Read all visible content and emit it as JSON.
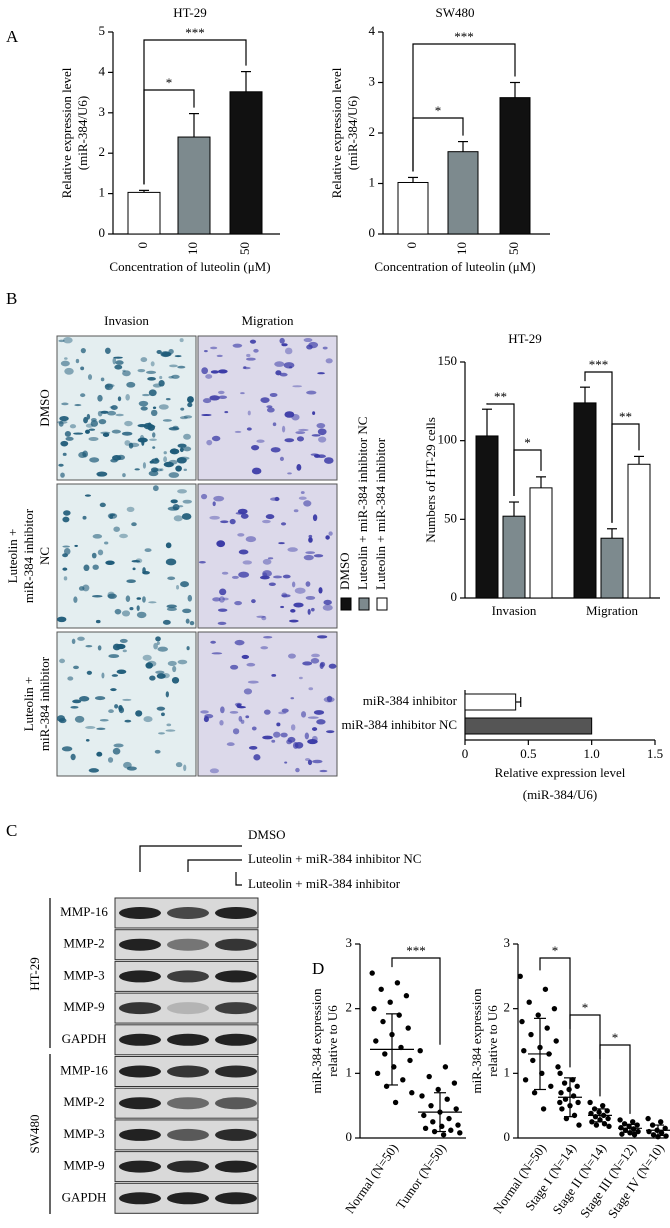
{
  "panel_labels": [
    "A",
    "B",
    "C",
    "D"
  ],
  "micrographs": {
    "columns": [
      "Invasion",
      "Migration"
    ],
    "rows": [
      [
        "DMSO"
      ],
      [
        "Luteolin +",
        "miR-384 inhibitor",
        "NC"
      ],
      [
        "Luteolin +",
        "miR-384 inhibitor"
      ]
    ]
  },
  "western_blot": {
    "treatments": [
      "DMSO",
      "Luteolin + miR-384 inhibitor NC",
      "Luteolin + miR-384 inhibitor"
    ],
    "groups": [
      "HT-29",
      "SW480"
    ],
    "proteins": [
      [
        "MMP-16",
        "MMP-2",
        "MMP-3",
        "MMP-9",
        "GAPDH"
      ],
      [
        "MMP-16",
        "MMP-2",
        "MMP-3",
        "MMP-9",
        "GAPDH"
      ]
    ]
  },
  "chart_data": [
    {
      "type": "bar",
      "title": "HT-29",
      "categories": [
        "0",
        "10",
        "50"
      ],
      "values": [
        1.03,
        2.4,
        3.52
      ],
      "errors": [
        0.05,
        0.58,
        0.5
      ],
      "colors": [
        "#ffffff",
        "#7d8a8e",
        "#111111"
      ],
      "ylim": [
        0,
        5
      ],
      "yticks": [
        0,
        1,
        2,
        3,
        4,
        5
      ],
      "y_label": [
        "Relative expression level",
        "(miR-384/U6)"
      ],
      "x_label": "Concentration of luteolin (μM)",
      "annotations": [
        "*",
        "***"
      ]
    },
    {
      "type": "bar",
      "title": "SW480",
      "categories": [
        "0",
        "10",
        "50"
      ],
      "values": [
        1.02,
        1.63,
        2.7
      ],
      "errors": [
        0.1,
        0.2,
        0.3
      ],
      "colors": [
        "#ffffff",
        "#7d8a8e",
        "#111111"
      ],
      "ylim": [
        0,
        4
      ],
      "yticks": [
        0,
        1,
        2,
        3,
        4
      ],
      "y_label": [
        "Relative expression level",
        "(miR-384/U6)"
      ],
      "x_label": "Concentration of luteolin (μM)",
      "annotations": [
        "*",
        "***"
      ]
    },
    {
      "type": "grouped_bar",
      "title": "HT-29",
      "categories": [
        "Invasion",
        "Migration"
      ],
      "series": [
        {
          "name": "DMSO",
          "color": "#111111",
          "values": [
            103,
            124
          ],
          "errors": [
            17,
            10
          ]
        },
        {
          "name": "Luteolin + miR-384 inhibitor NC",
          "color": "#7d8a8e",
          "values": [
            52,
            38
          ],
          "errors": [
            9,
            6
          ]
        },
        {
          "name": "Luteolin + miR-384 inhibitor",
          "color": "#ffffff",
          "values": [
            70,
            85
          ],
          "errors": [
            7,
            5
          ]
        }
      ],
      "ylim": [
        0,
        150
      ],
      "yticks": [
        0,
        50,
        100,
        150
      ],
      "y_label": [
        "Numbers of HT-29 cells"
      ],
      "annotations": [
        "**",
        "*",
        "***",
        "**"
      ]
    },
    {
      "type": "hbar",
      "categories": [
        "miR-384 inhibitor",
        "miR-384 inhibitor NC"
      ],
      "values": [
        0.4,
        1.0
      ],
      "errors": [
        0.04,
        0
      ],
      "colors": [
        "#ffffff",
        "#555555"
      ],
      "xlim": [
        0,
        1.5
      ],
      "xticks": [
        0,
        0.5,
        {
          "value": 1,
          "label": "1.0"
        },
        1.5
      ],
      "x_label": [
        "Relative expression level",
        "(miR-384/U6)"
      ]
    },
    {
      "type": "dot_plot",
      "categories": [
        "Normal (N=50)",
        "Tumor (N=50)"
      ],
      "values": [
        [
          2.55,
          2.4,
          2.3,
          2.2,
          2.1,
          2.0,
          1.9,
          1.8,
          1.7,
          1.6,
          1.5,
          1.4,
          1.3,
          1.2,
          1.1,
          1.0,
          0.9,
          0.8,
          0.7,
          0.55
        ],
        [
          1.35,
          1.1,
          0.95,
          0.85,
          0.75,
          0.65,
          0.6,
          0.5,
          0.45,
          0.4,
          0.35,
          0.3,
          0.25,
          0.2,
          0.18,
          0.15,
          0.12,
          0.1,
          0.08,
          0.05
        ]
      ],
      "means": [
        1.37,
        0.4
      ],
      "sds": [
        0.55,
        0.3
      ],
      "ylim": [
        0,
        3
      ],
      "yticks": [
        0,
        1,
        2,
        3
      ],
      "y_label": [
        "miR-384 expression",
        "relative to U6"
      ],
      "annotations": [
        "***"
      ]
    },
    {
      "type": "dot_plot",
      "categories": [
        "Normal (N=50)",
        "Stage I (N=14)",
        "Stage II (N=14)",
        "Stage III (N=12)",
        "Stage IV (N=10)"
      ],
      "values": [
        [
          2.5,
          2.3,
          2.1,
          2.0,
          1.9,
          1.8,
          1.7,
          1.6,
          1.5,
          1.4,
          1.35,
          1.3,
          1.2,
          1.1,
          1.0,
          0.9,
          0.8,
          0.7,
          0.55,
          0.45
        ],
        [
          1.0,
          0.9,
          0.85,
          0.8,
          0.75,
          0.7,
          0.65,
          0.6,
          0.55,
          0.5,
          0.45,
          0.35,
          0.3,
          0.2
        ],
        [
          0.55,
          0.5,
          0.45,
          0.42,
          0.4,
          0.38,
          0.35,
          0.33,
          0.3,
          0.28,
          0.25,
          0.22,
          0.2,
          0.18
        ],
        [
          0.28,
          0.25,
          0.22,
          0.2,
          0.18,
          0.16,
          0.14,
          0.12,
          0.1,
          0.08,
          0.06,
          0.05
        ],
        [
          0.3,
          0.25,
          0.2,
          0.15,
          0.12,
          0.1,
          0.08,
          0.05,
          0.03,
          0.02
        ]
      ],
      "means": [
        1.3,
        0.63,
        0.35,
        0.15,
        0.12
      ],
      "sds": [
        0.55,
        0.3,
        0.1,
        0.06,
        0.08
      ],
      "ylim": [
        0,
        3
      ],
      "yticks": [
        0,
        1,
        2,
        3
      ],
      "y_label": [
        "miR-384 expression",
        "relative to U6"
      ],
      "annotations": [
        "*",
        "*",
        "*"
      ]
    }
  ]
}
